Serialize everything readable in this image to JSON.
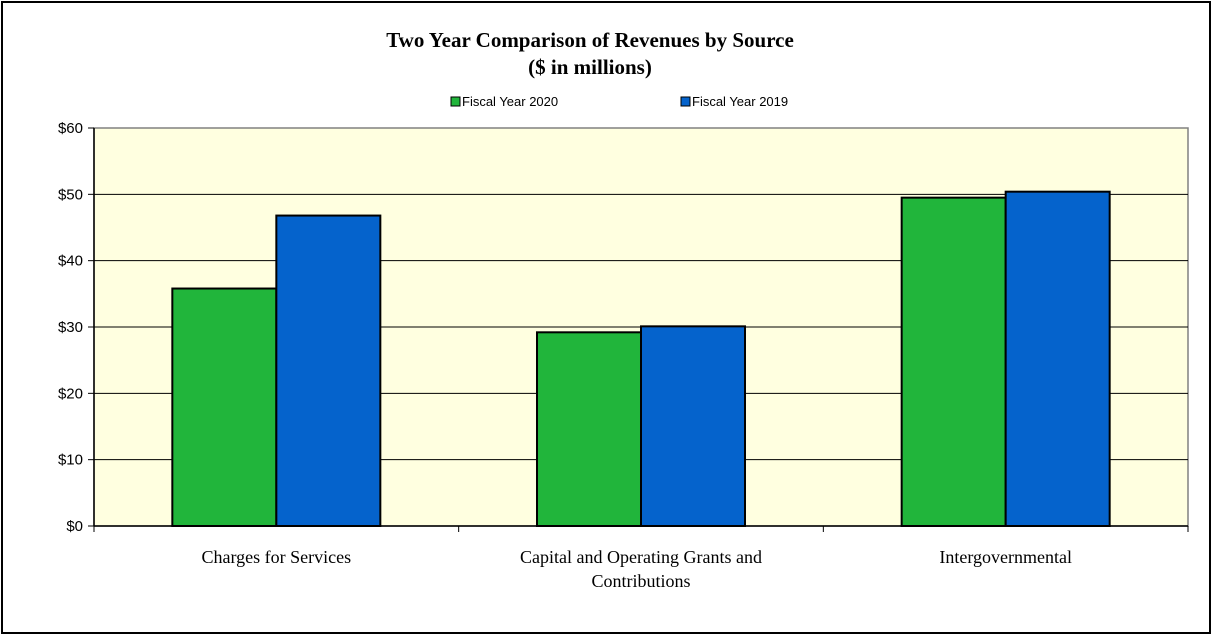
{
  "chart_data": {
    "type": "bar",
    "title": "Two Year Comparison of Revenues by Source",
    "subtitle": "($ in millions)",
    "categories": [
      [
        "Charges for Services"
      ],
      [
        "Capital and Operating Grants and",
        "Contributions"
      ],
      [
        "Intergovernmental"
      ]
    ],
    "series": [
      {
        "name": "Fiscal Year 2020",
        "color": "#21b53b",
        "values": [
          35.8,
          29.2,
          49.5
        ]
      },
      {
        "name": "Fiscal Year 2019",
        "color": "#0563cc",
        "values": [
          46.8,
          30.1,
          50.4
        ]
      }
    ],
    "ylim": [
      0,
      60
    ],
    "yticks": [
      0,
      10,
      20,
      30,
      40,
      50,
      60
    ],
    "ytick_labels": [
      "$0",
      "$10",
      "$20",
      "$30",
      "$40",
      "$50",
      "$60"
    ],
    "grid": true,
    "legend_position": "top-center",
    "plot_background": "#ffffe0"
  }
}
